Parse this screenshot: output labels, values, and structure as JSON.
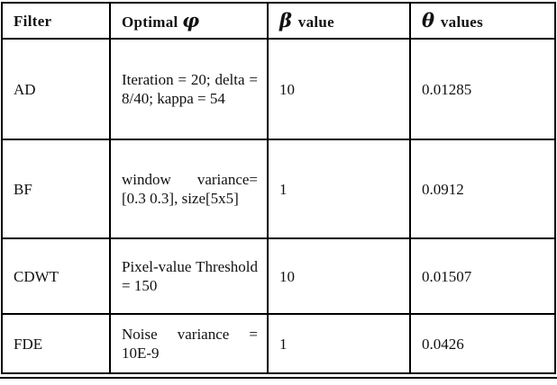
{
  "table": {
    "headers": {
      "filter": "Filter",
      "optimal_pre": "Optimal ",
      "optimal_sym": "φ",
      "beta_sym": "β",
      "beta_post": " value",
      "theta_sym": "θ",
      "theta_post": " values"
    },
    "rows": [
      {
        "filter": "AD",
        "optimal": "Iteration = 20; delta = 8/40; kappa = 54",
        "beta": "10",
        "theta": "0.01285"
      },
      {
        "filter": "BF",
        "optimal": "window variance= [0.3 0.3], size[5x5]",
        "beta": "1",
        "theta": "0.0912"
      },
      {
        "filter": "CDWT",
        "optimal": "Pixel-value Threshold = 150",
        "beta": "10",
        "theta": "0.01507"
      },
      {
        "filter": "FDE",
        "optimal": "Noise variance = 10E-9",
        "beta": "1",
        "theta": "0.0426"
      }
    ]
  }
}
